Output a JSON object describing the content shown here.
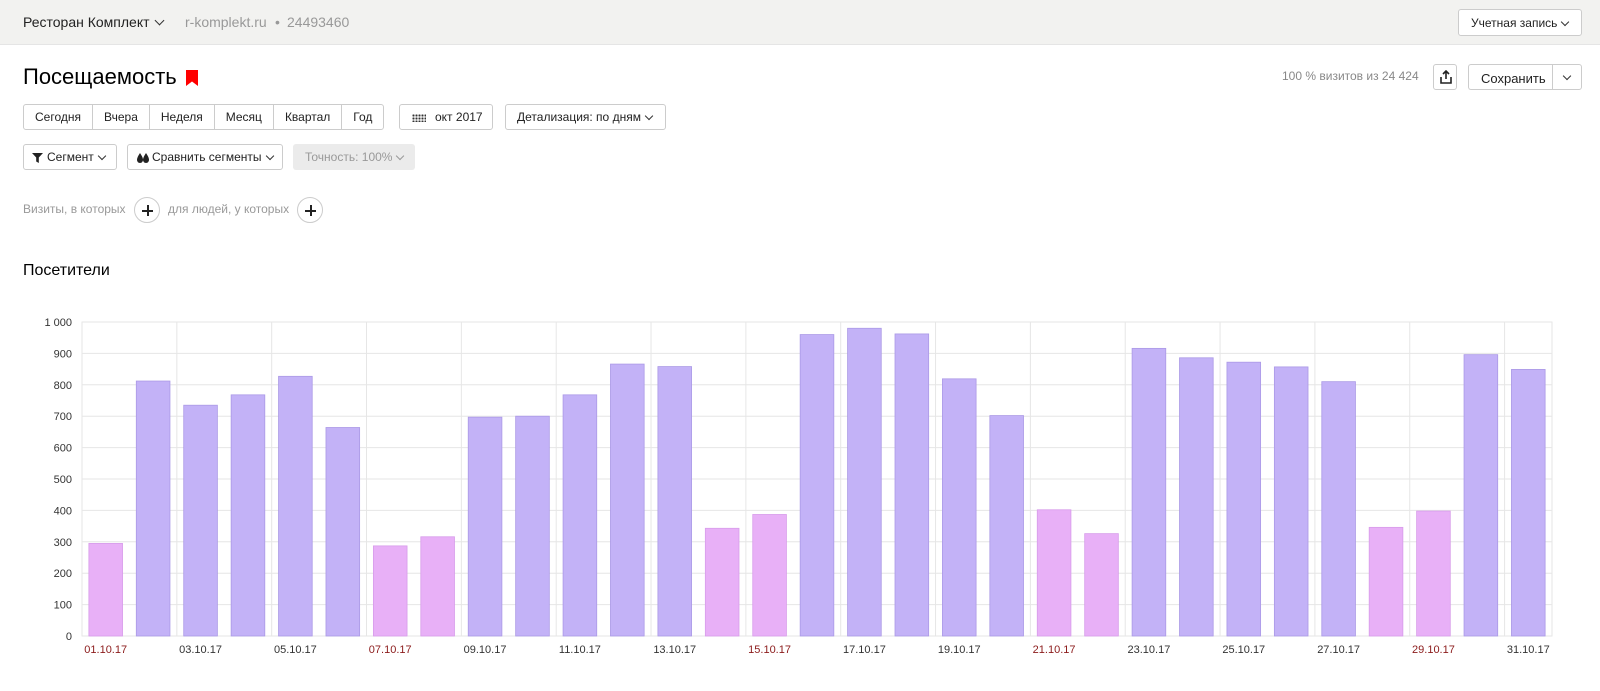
{
  "header": {
    "counter_name": "Ресторан Комплект",
    "site_url": "r-komplekt.ru",
    "separator": "•",
    "counter_id": "24493460",
    "account_label": "Учетная запись"
  },
  "page": {
    "title": "Посещаемость",
    "visits_note": "100 % визитов из 24 424",
    "save_label": "Сохранить"
  },
  "period_buttons": [
    "Сегодня",
    "Вчера",
    "Неделя",
    "Месяц",
    "Квартал",
    "Год"
  ],
  "date_range": "окт 2017",
  "detail_label": "Детализация: по дням",
  "segment_label": "Сегмент",
  "compare_label": "Сравнить сегменты",
  "accuracy_label": "Точность: 100%",
  "conditions": {
    "visits_label": "Визиты, в которых",
    "people_label": "для людей, у которых"
  },
  "colors": {
    "weekday_bar": "#c3b2f7",
    "weekend_bar": "#e8b0f7",
    "weekend_label": "#8b1a1a",
    "accent_red": "#ff0000"
  },
  "chart_data": {
    "type": "bar",
    "title": "Посетители",
    "xlabel": "",
    "ylabel": "",
    "ylim": [
      0,
      1000
    ],
    "y_ticks": [
      "0",
      "100",
      "200",
      "300",
      "400",
      "500",
      "600",
      "700",
      "800",
      "900",
      "1 000"
    ],
    "grid": true,
    "categories": [
      "01.10.17",
      "02.10.17",
      "03.10.17",
      "04.10.17",
      "05.10.17",
      "06.10.17",
      "07.10.17",
      "08.10.17",
      "09.10.17",
      "10.10.17",
      "11.10.17",
      "12.10.17",
      "13.10.17",
      "14.10.17",
      "15.10.17",
      "16.10.17",
      "17.10.17",
      "18.10.17",
      "19.10.17",
      "20.10.17",
      "21.10.17",
      "22.10.17",
      "23.10.17",
      "24.10.17",
      "25.10.17",
      "26.10.17",
      "27.10.17",
      "28.10.17",
      "29.10.17",
      "30.10.17",
      "31.10.17"
    ],
    "x_tick_labels": [
      "01.10.17",
      "03.10.17",
      "05.10.17",
      "07.10.17",
      "09.10.17",
      "11.10.17",
      "13.10.17",
      "15.10.17",
      "17.10.17",
      "19.10.17",
      "21.10.17",
      "23.10.17",
      "25.10.17",
      "27.10.17",
      "29.10.17",
      "31.10.17"
    ],
    "weekend_tick_labels": [
      "01.10.17",
      "07.10.17",
      "15.10.17",
      "21.10.17",
      "29.10.17"
    ],
    "values": [
      295,
      812,
      735,
      768,
      827,
      664,
      287,
      316,
      697,
      700,
      768,
      866,
      858,
      343,
      387,
      960,
      980,
      962,
      819,
      702,
      402,
      326,
      916,
      886,
      872,
      857,
      810,
      346,
      398,
      896,
      849
    ],
    "weekend": [
      true,
      false,
      false,
      false,
      false,
      false,
      true,
      true,
      false,
      false,
      false,
      false,
      false,
      true,
      true,
      false,
      false,
      false,
      false,
      false,
      true,
      true,
      false,
      false,
      false,
      false,
      false,
      true,
      true,
      false,
      false
    ]
  }
}
